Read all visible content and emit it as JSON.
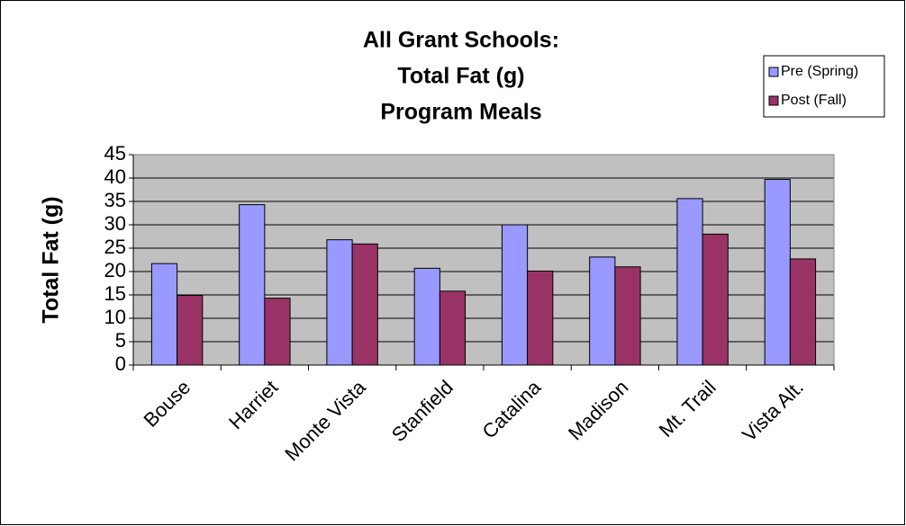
{
  "chart_data": {
    "type": "bar",
    "title": [
      "All Grant Schools:",
      "Total Fat (g)",
      "Program Meals"
    ],
    "y_label": "Total Fat (g)",
    "categories": [
      "Bouse",
      "Harriet",
      "Monte Vista",
      "Stanfield",
      "Catalina",
      "Madison",
      "Mt. Trail",
      "Vista Alt."
    ],
    "series": [
      {
        "name": "Pre (Spring)",
        "color": "#9999ff",
        "values": [
          21.7,
          34.3,
          26.8,
          20.7,
          30,
          23.1,
          35.6,
          39.7
        ]
      },
      {
        "name": "Post (Fall)",
        "color": "#993366",
        "values": [
          14.9,
          14.3,
          25.9,
          15.8,
          20.1,
          21,
          28,
          22.7
        ]
      }
    ],
    "ylim": [
      0,
      45
    ],
    "yticks": [
      0,
      5,
      10,
      15,
      20,
      25,
      30,
      35,
      40,
      45
    ],
    "grid": true,
    "legend": "top-right"
  }
}
